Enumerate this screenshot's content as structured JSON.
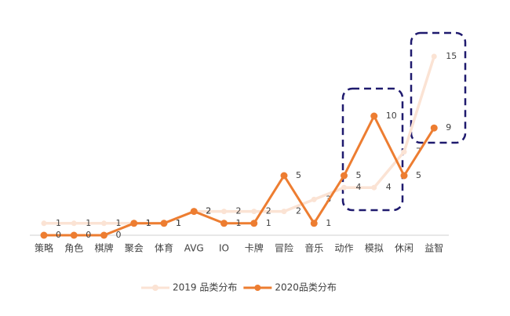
{
  "chart_data": {
    "type": "line",
    "categories": [
      "策略",
      "角色",
      "棋牌",
      "聚会",
      "体育",
      "AVG",
      "IO",
      "卡牌",
      "冒险",
      "音乐",
      "动作",
      "模拟",
      "休闲",
      "益智"
    ],
    "series": [
      {
        "name": "2019 品类分布",
        "color": "#fbe3d4",
        "values": [
          1,
          1,
          1,
          1,
          1,
          2,
          2,
          2,
          2,
          3,
          4,
          4,
          7,
          15
        ]
      },
      {
        "name": "2020品类分布",
        "color": "#ed7d31",
        "values": [
          0,
          0,
          0,
          1,
          1,
          2,
          1,
          1,
          5,
          1,
          5,
          10,
          5,
          9
        ]
      }
    ],
    "ylim": [
      0,
      15
    ]
  }
}
